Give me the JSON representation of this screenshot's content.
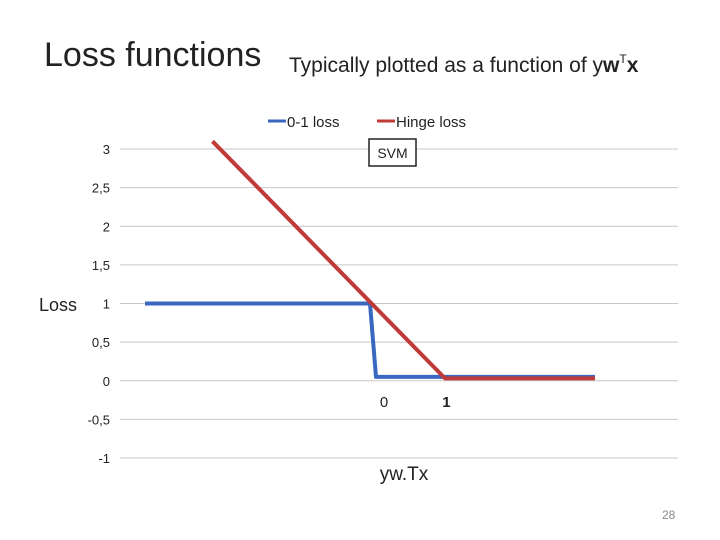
{
  "slide": {
    "title": "Loss functions",
    "subtitle_prefix": "Typically plotted as a function of y",
    "subtitle_bold_w": "w",
    "subtitle_sup": "T",
    "subtitle_bold_x": "x",
    "page_number": "28"
  },
  "chart_data": {
    "type": "line",
    "title": "",
    "xlabel": "yw.Tx",
    "ylabel": "Loss",
    "ylim": [
      -1,
      3
    ],
    "y_ticks": [
      "3",
      "2,5",
      "2",
      "1,5",
      "1",
      "0,5",
      "0",
      "-0,5",
      "-1"
    ],
    "y_tick_values": [
      3,
      2.5,
      2,
      1.5,
      1,
      0.5,
      0,
      -0.5,
      -1
    ],
    "x_range": [
      -3,
      3
    ],
    "x_tick_labels": [
      {
        "label": "0",
        "x": 0,
        "bold": false
      },
      {
        "label": "1",
        "x": 1,
        "bold": true
      }
    ],
    "grid": true,
    "legend": "top",
    "annotation": "SVM",
    "series": [
      {
        "name": "0-1 loss",
        "color": "#3a67c0",
        "points": [
          [
            -3,
            1
          ],
          [
            0,
            1
          ],
          [
            0.08,
            0.05
          ],
          [
            3,
            0.05
          ]
        ]
      },
      {
        "name": "Hinge loss",
        "color": "#bf3a38",
        "points": [
          [
            -2.1,
            3.1
          ],
          [
            1,
            0.03
          ],
          [
            3,
            0.03
          ]
        ]
      }
    ]
  }
}
